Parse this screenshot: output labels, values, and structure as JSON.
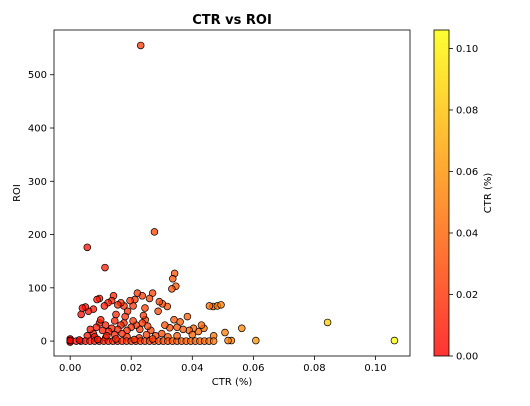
{
  "chart_data": {
    "type": "scatter",
    "title": "CTR vs ROI",
    "xlabel": "CTR (%)",
    "ylabel": "ROI",
    "xlim": [
      -0.0053,
      0.1113
    ],
    "ylim": [
      -28,
      584
    ],
    "xticks": [
      0.0,
      0.02,
      0.04,
      0.06,
      0.08,
      0.1
    ],
    "xtick_labels": [
      "0.00",
      "0.02",
      "0.04",
      "0.06",
      "0.08",
      "0.10"
    ],
    "yticks": [
      0,
      100,
      200,
      300,
      400,
      500
    ],
    "ytick_labels": [
      "0",
      "100",
      "200",
      "300",
      "400",
      "500"
    ],
    "grid": false,
    "marker_edge_color": "#000000",
    "colorbar": {
      "label": "CTR (%)",
      "range": [
        0.0,
        0.106
      ],
      "ticks": [
        0.0,
        0.02,
        0.04,
        0.06,
        0.08,
        0.1
      ],
      "tick_labels": [
        "0.00",
        "0.02",
        "0.04",
        "0.06",
        "0.08",
        "0.10"
      ],
      "colormap": "autumn_r",
      "color_low": "#ff0000",
      "color_high": "#ffff00"
    },
    "points": [
      {
        "x": 0.0231,
        "y": 555
      },
      {
        "x": 0.0056,
        "y": 176
      },
      {
        "x": 0.0276,
        "y": 205
      },
      {
        "x": 0.0114,
        "y": 138
      },
      {
        "x": 0.0342,
        "y": 127
      },
      {
        "x": 0.0336,
        "y": 117
      },
      {
        "x": 0.0346,
        "y": 103
      },
      {
        "x": 0.0333,
        "y": 98
      },
      {
        "x": 0.0843,
        "y": 35
      },
      {
        "x": 0.1062,
        "y": 1
      },
      {
        "x": 0.0608,
        "y": 1
      },
      {
        "x": 0.0562,
        "y": 24
      },
      {
        "x": 0.0507,
        "y": 16
      },
      {
        "x": 0.0528,
        "y": 1
      },
      {
        "x": 0.0517,
        "y": 1
      },
      {
        "x": 0.0468,
        "y": 65
      },
      {
        "x": 0.0482,
        "y": 66
      },
      {
        "x": 0.0494,
        "y": 68
      },
      {
        "x": 0.0456,
        "y": 66
      },
      {
        "x": 0.047,
        "y": 10
      },
      {
        "x": 0.0438,
        "y": 24
      },
      {
        "x": 0.043,
        "y": 30
      },
      {
        "x": 0.042,
        "y": 18
      },
      {
        "x": 0.0404,
        "y": 24
      },
      {
        "x": 0.039,
        "y": 20
      },
      {
        "x": 0.0384,
        "y": 46
      },
      {
        "x": 0.036,
        "y": 36
      },
      {
        "x": 0.035,
        "y": 26
      },
      {
        "x": 0.034,
        "y": 40
      },
      {
        "x": 0.0326,
        "y": 25
      },
      {
        "x": 0.0318,
        "y": 65
      },
      {
        "x": 0.0302,
        "y": 70
      },
      {
        "x": 0.0292,
        "y": 74
      },
      {
        "x": 0.0288,
        "y": 56
      },
      {
        "x": 0.027,
        "y": 90
      },
      {
        "x": 0.026,
        "y": 80
      },
      {
        "x": 0.0245,
        "y": 62
      },
      {
        "x": 0.0236,
        "y": 85
      },
      {
        "x": 0.022,
        "y": 90
      },
      {
        "x": 0.0212,
        "y": 78
      },
      {
        "x": 0.0206,
        "y": 66
      },
      {
        "x": 0.0196,
        "y": 76
      },
      {
        "x": 0.0188,
        "y": 56
      },
      {
        "x": 0.0176,
        "y": 66
      },
      {
        "x": 0.0166,
        "y": 72
      },
      {
        "x": 0.0156,
        "y": 68
      },
      {
        "x": 0.0142,
        "y": 85
      },
      {
        "x": 0.0136,
        "y": 76
      },
      {
        "x": 0.0124,
        "y": 72
      },
      {
        "x": 0.0112,
        "y": 66
      },
      {
        "x": 0.0096,
        "y": 80
      },
      {
        "x": 0.0088,
        "y": 78
      },
      {
        "x": 0.0076,
        "y": 60
      },
      {
        "x": 0.006,
        "y": 56
      },
      {
        "x": 0.005,
        "y": 64
      },
      {
        "x": 0.004,
        "y": 62
      },
      {
        "x": 0.0036,
        "y": 50
      },
      {
        "x": 0.0264,
        "y": 20
      },
      {
        "x": 0.0254,
        "y": 28
      },
      {
        "x": 0.0246,
        "y": 40
      },
      {
        "x": 0.0236,
        "y": 34
      },
      {
        "x": 0.0228,
        "y": 22
      },
      {
        "x": 0.0216,
        "y": 30
      },
      {
        "x": 0.0206,
        "y": 38
      },
      {
        "x": 0.02,
        "y": 26
      },
      {
        "x": 0.0186,
        "y": 20
      },
      {
        "x": 0.0176,
        "y": 34
      },
      {
        "x": 0.0166,
        "y": 30
      },
      {
        "x": 0.0156,
        "y": 22
      },
      {
        "x": 0.0146,
        "y": 38
      },
      {
        "x": 0.0136,
        "y": 24
      },
      {
        "x": 0.0126,
        "y": 18
      },
      {
        "x": 0.0116,
        "y": 30
      },
      {
        "x": 0.0106,
        "y": 20
      },
      {
        "x": 0.0096,
        "y": 34
      },
      {
        "x": 0.0086,
        "y": 26
      },
      {
        "x": 0.0076,
        "y": 14
      },
      {
        "x": 0.0066,
        "y": 22
      },
      {
        "x": 0.0056,
        "y": 10
      },
      {
        "x": 0.03,
        "y": 14
      },
      {
        "x": 0.031,
        "y": 30
      },
      {
        "x": 0.037,
        "y": 22
      },
      {
        "x": 0.04,
        "y": 12
      },
      {
        "x": 0.032,
        "y": 8
      },
      {
        "x": 0.028,
        "y": 10
      },
      {
        "x": 0.0226,
        "y": 6
      },
      {
        "x": 0.0186,
        "y": 8
      },
      {
        "x": 0.0146,
        "y": 12
      },
      {
        "x": 0.0116,
        "y": 6
      },
      {
        "x": 0.008,
        "y": 8
      },
      {
        "x": 0.018,
        "y": 46
      },
      {
        "x": 0.024,
        "y": 48
      },
      {
        "x": 0.015,
        "y": 50
      },
      {
        "x": 0.01,
        "y": 40
      },
      {
        "x": 0.0,
        "y": 0
      },
      {
        "x": 0.0,
        "y": 2
      },
      {
        "x": 0.0,
        "y": 4
      },
      {
        "x": 0.0,
        "y": -2
      },
      {
        "x": 0.0,
        "y": 1
      },
      {
        "x": 0.002,
        "y": 0
      },
      {
        "x": 0.0035,
        "y": 0
      },
      {
        "x": 0.005,
        "y": 0
      },
      {
        "x": 0.0065,
        "y": 0
      },
      {
        "x": 0.008,
        "y": 0
      },
      {
        "x": 0.0095,
        "y": 0
      },
      {
        "x": 0.011,
        "y": 0
      },
      {
        "x": 0.0125,
        "y": 0
      },
      {
        "x": 0.014,
        "y": 0
      },
      {
        "x": 0.0155,
        "y": 0
      },
      {
        "x": 0.017,
        "y": 0
      },
      {
        "x": 0.0185,
        "y": 0
      },
      {
        "x": 0.02,
        "y": 0
      },
      {
        "x": 0.0215,
        "y": 0
      },
      {
        "x": 0.023,
        "y": 0
      },
      {
        "x": 0.0245,
        "y": 0
      },
      {
        "x": 0.026,
        "y": 0
      },
      {
        "x": 0.0275,
        "y": 0
      },
      {
        "x": 0.029,
        "y": 0
      },
      {
        "x": 0.0305,
        "y": 0
      },
      {
        "x": 0.032,
        "y": 0
      },
      {
        "x": 0.0335,
        "y": 0
      },
      {
        "x": 0.035,
        "y": 0
      },
      {
        "x": 0.0365,
        "y": 0
      },
      {
        "x": 0.038,
        "y": 0
      },
      {
        "x": 0.0395,
        "y": 0
      },
      {
        "x": 0.041,
        "y": 0
      },
      {
        "x": 0.0425,
        "y": 0
      },
      {
        "x": 0.044,
        "y": 0
      },
      {
        "x": 0.0455,
        "y": 0
      },
      {
        "x": 0.047,
        "y": 0
      },
      {
        "x": 0.009,
        "y": 3
      },
      {
        "x": 0.015,
        "y": 4
      },
      {
        "x": 0.021,
        "y": 3
      },
      {
        "x": 0.027,
        "y": 4
      },
      {
        "x": 0.003,
        "y": 2
      },
      {
        "x": 0.012,
        "y": 10
      },
      {
        "x": 0.017,
        "y": 14
      },
      {
        "x": 0.025,
        "y": 12
      },
      {
        "x": 0.035,
        "y": 10
      }
    ]
  }
}
